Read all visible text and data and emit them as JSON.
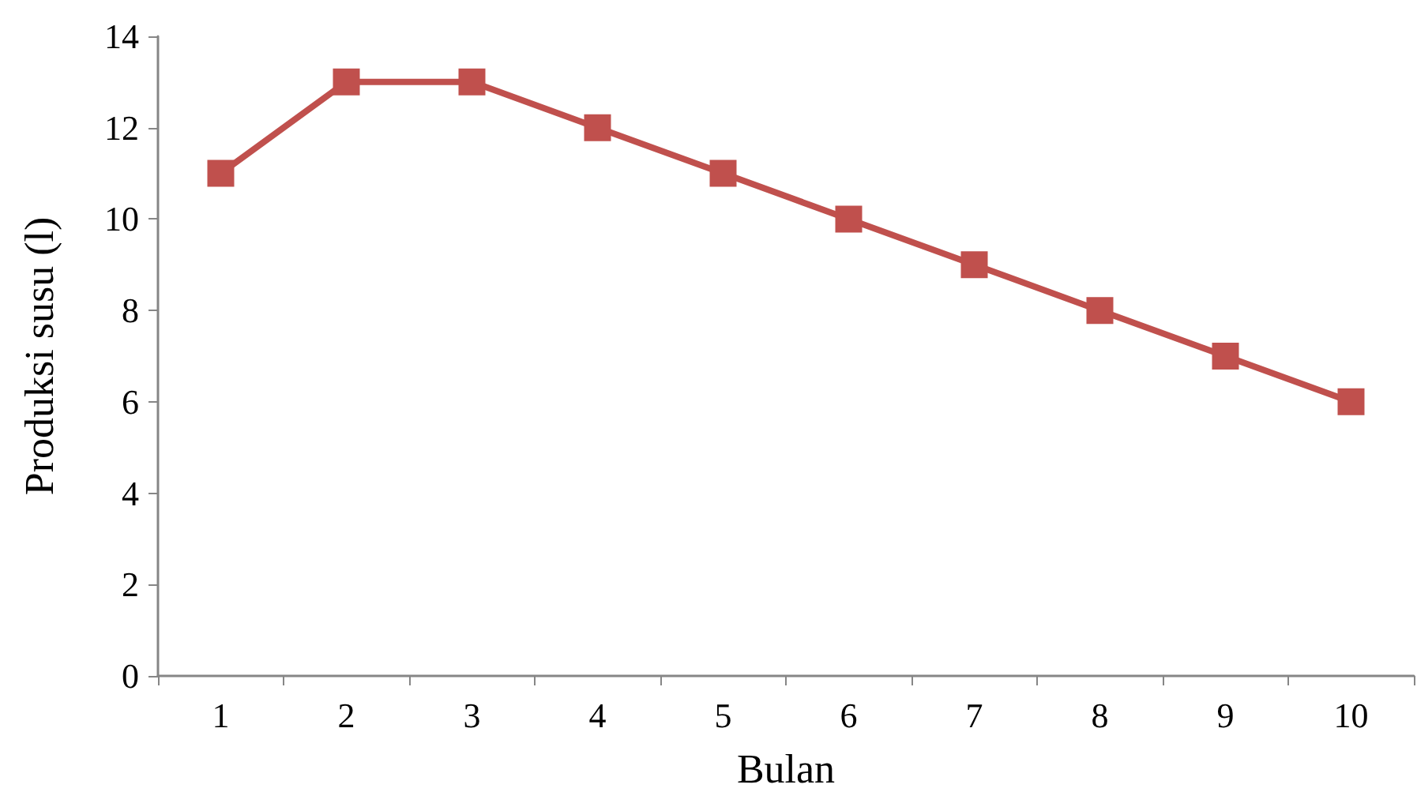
{
  "chart_data": {
    "type": "line",
    "xlabel": "Bulan",
    "ylabel": "Produksi susu (l)",
    "categories": [
      "1",
      "2",
      "3",
      "4",
      "5",
      "6",
      "7",
      "8",
      "9",
      "10"
    ],
    "series": [
      {
        "color": "#c0504d",
        "values": [
          11,
          13,
          13,
          12,
          11,
          10,
          9,
          8,
          7,
          6
        ]
      }
    ],
    "ylim": [
      0,
      14
    ],
    "yticks": [
      0,
      2,
      4,
      6,
      8,
      10,
      12,
      14
    ],
    "grid": false,
    "marker": "square",
    "line_style": "solid"
  }
}
